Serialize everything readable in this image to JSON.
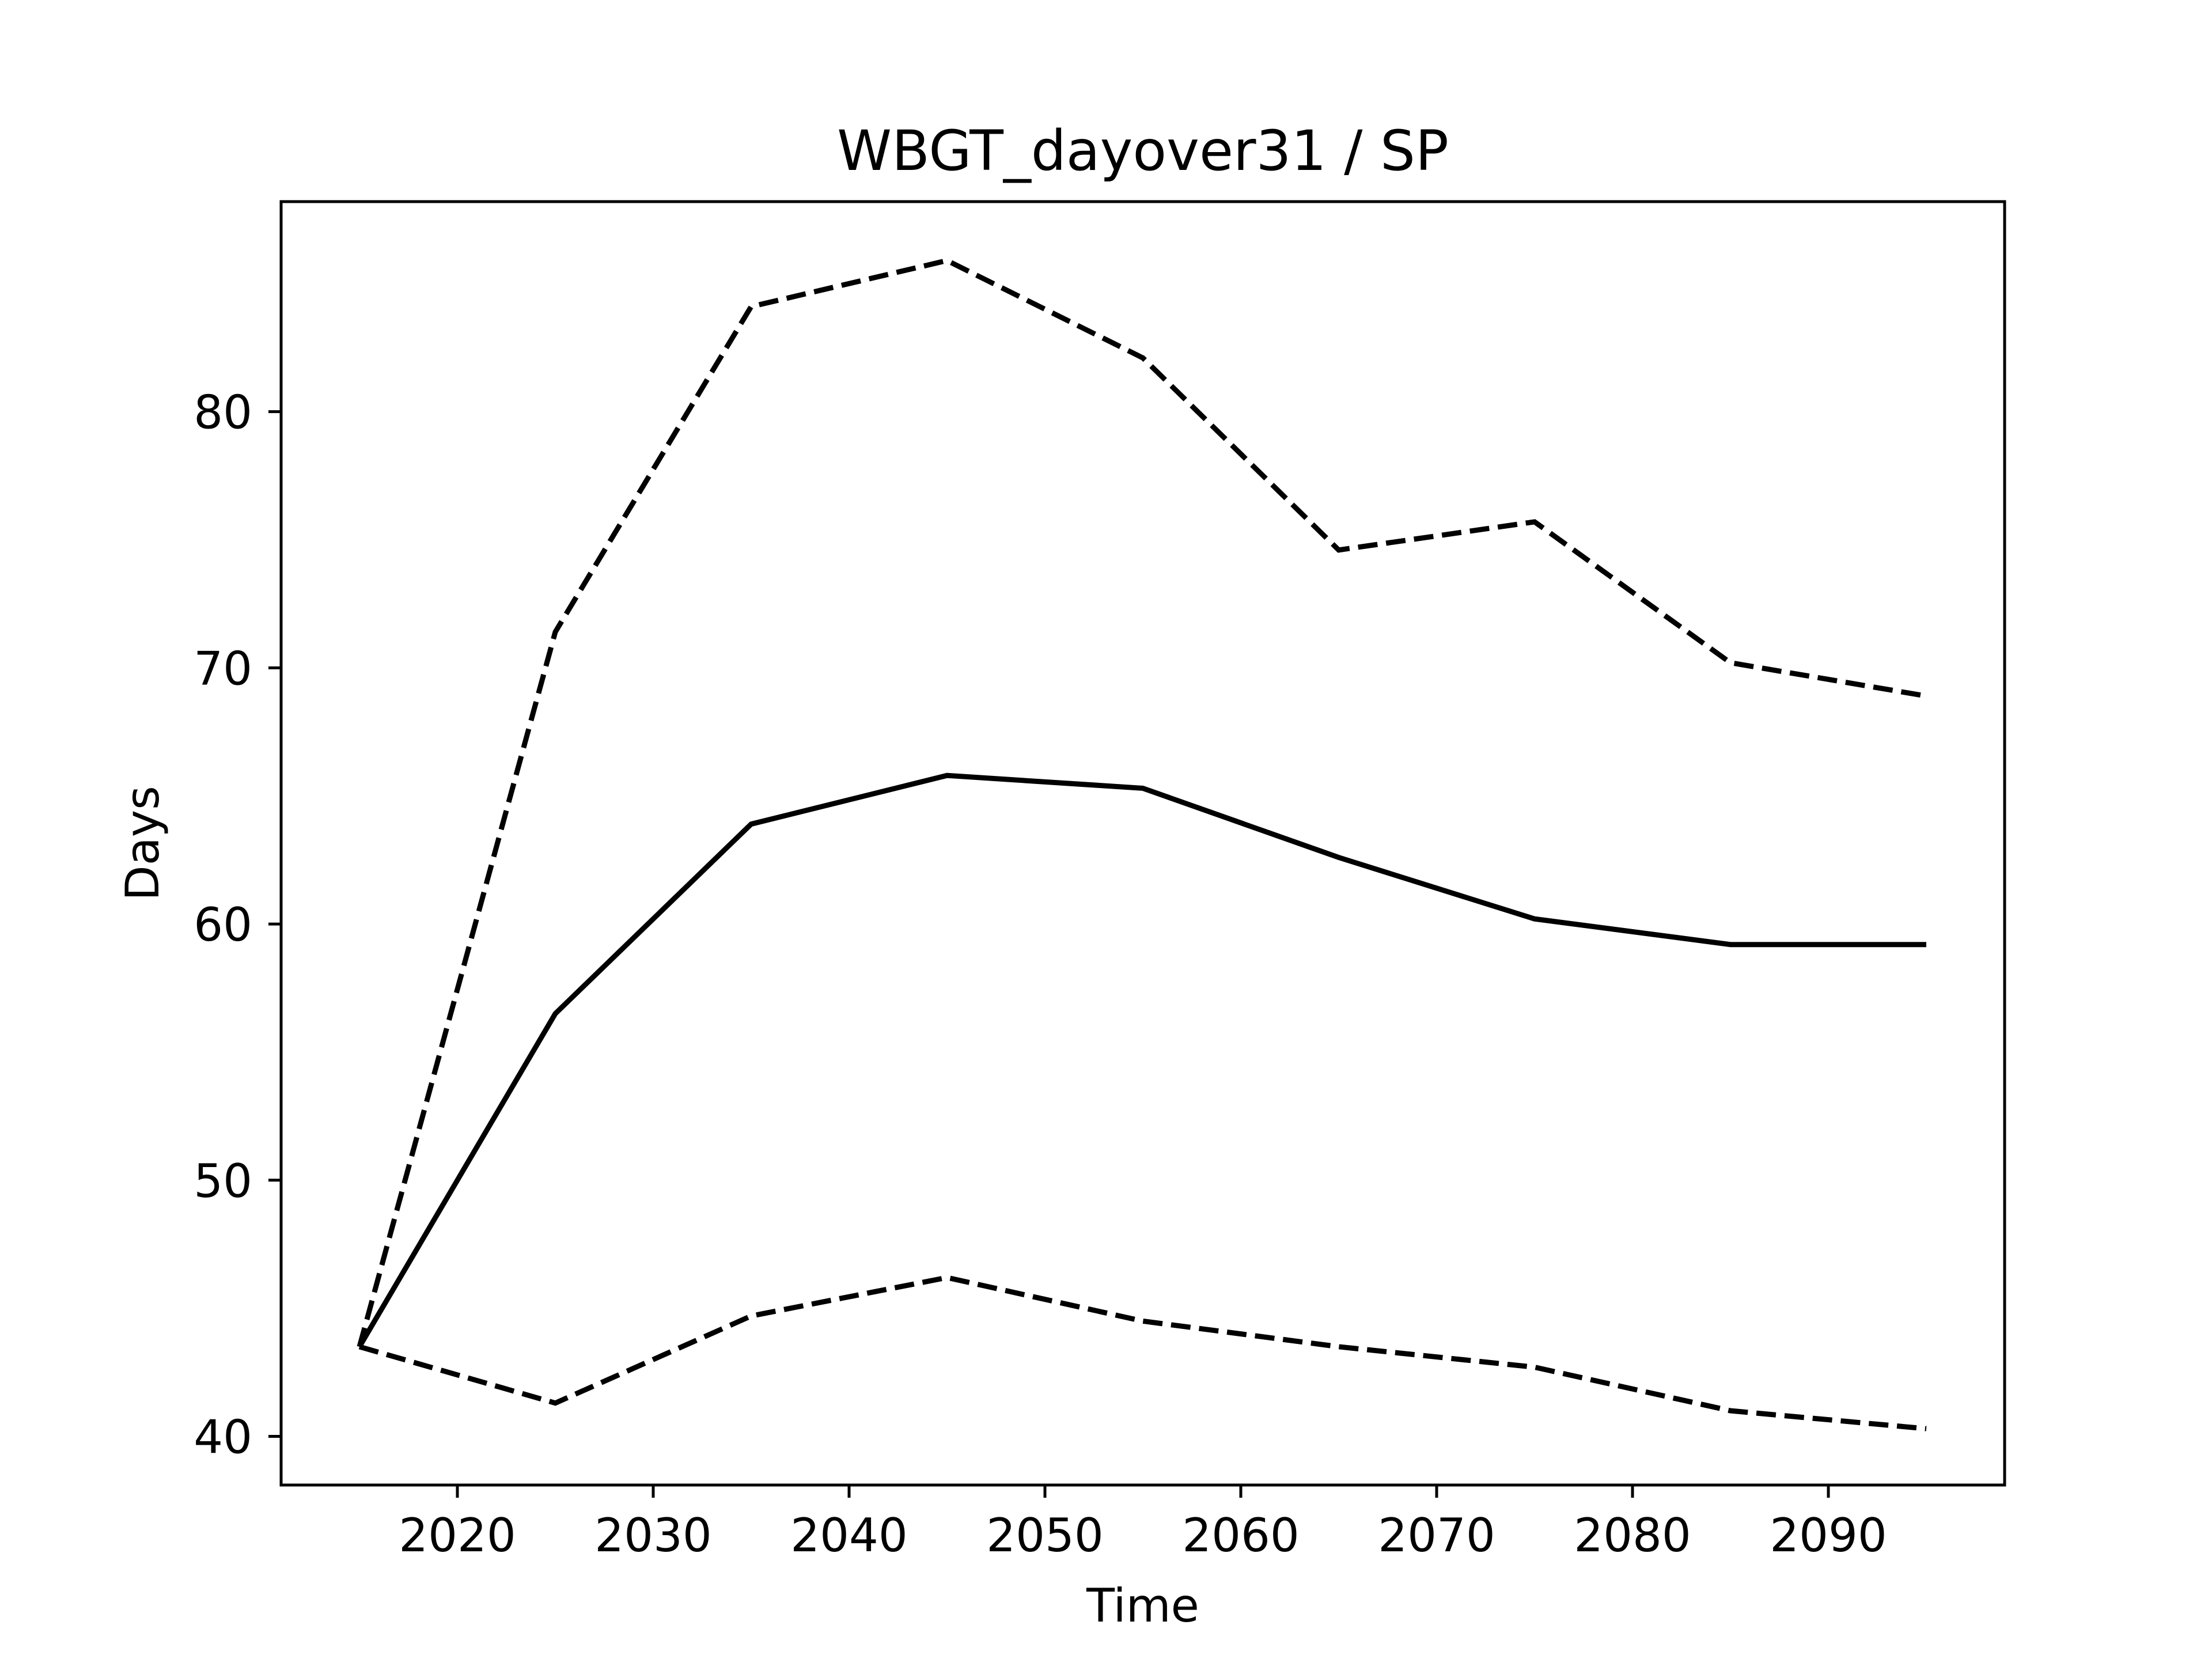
{
  "chart_data": {
    "type": "line",
    "title": "WBGT_dayover31 / SP",
    "xlabel": "Time",
    "ylabel": "Days",
    "xlim": [
      2011,
      2099
    ],
    "ylim": [
      38.1,
      88.2
    ],
    "x_ticks": [
      2020,
      2030,
      2040,
      2050,
      2060,
      2070,
      2080,
      2090
    ],
    "y_ticks": [
      40,
      50,
      60,
      70,
      80
    ],
    "grid": false,
    "legend": "none",
    "x": [
      2015,
      2025,
      2035,
      2045,
      2055,
      2065,
      2075,
      2085,
      2095
    ],
    "series": [
      {
        "style": "dashed",
        "color": "#000000",
        "values": [
          43.5,
          71.4,
          84.1,
          85.9,
          82.1,
          74.6,
          75.7,
          70.2,
          68.9
        ]
      },
      {
        "style": "solid",
        "color": "#000000",
        "values": [
          43.5,
          56.5,
          63.9,
          65.8,
          65.3,
          62.6,
          60.2,
          59.2,
          59.2
        ]
      },
      {
        "style": "dashed",
        "color": "#000000",
        "values": [
          43.5,
          41.3,
          44.7,
          46.2,
          44.5,
          43.5,
          42.7,
          41.0,
          40.3
        ]
      }
    ]
  }
}
